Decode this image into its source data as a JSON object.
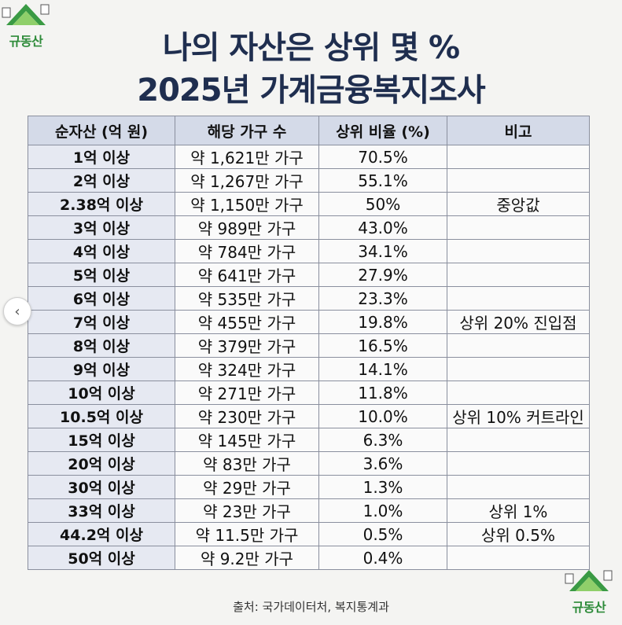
{
  "brand": {
    "logo_text": "규동산"
  },
  "title": {
    "line1": "나의 자산은 상위 몇 %",
    "line2": "2025년 가계금융복지조사"
  },
  "table": {
    "headers": [
      "순자산 (억 원)",
      "해당 가구 수",
      "상위 비율 (%)",
      "비고"
    ],
    "rows": [
      [
        "1억 이상",
        "약 1,621만 가구",
        "70.5%",
        ""
      ],
      [
        "2억 이상",
        "약 1,267만 가구",
        "55.1%",
        ""
      ],
      [
        "2.38억 이상",
        "약 1,150만 가구",
        "50%",
        "중앙값"
      ],
      [
        "3억 이상",
        "약 989만 가구",
        "43.0%",
        ""
      ],
      [
        "4억 이상",
        "약 784만 가구",
        "34.1%",
        ""
      ],
      [
        "5억 이상",
        "약 641만 가구",
        "27.9%",
        ""
      ],
      [
        "6억 이상",
        "약 535만 가구",
        "23.3%",
        ""
      ],
      [
        "7억 이상",
        "약 455만 가구",
        "19.8%",
        "상위 20% 진입점"
      ],
      [
        "8억 이상",
        "약 379만 가구",
        "16.5%",
        ""
      ],
      [
        "9억 이상",
        "약 324만 가구",
        "14.1%",
        ""
      ],
      [
        "10억 이상",
        "약 271만 가구",
        "11.8%",
        ""
      ],
      [
        "10.5억 이상",
        "약 230만 가구",
        "10.0%",
        "상위 10% 커트라인"
      ],
      [
        "15억 이상",
        "약 145만 가구",
        "6.3%",
        ""
      ],
      [
        "20억 이상",
        "약 83만 가구",
        "3.6%",
        ""
      ],
      [
        "30억 이상",
        "약 29만 가구",
        "1.3%",
        ""
      ],
      [
        "33억 이상",
        "약 23만 가구",
        "1.0%",
        "상위 1%"
      ],
      [
        "44.2억 이상",
        "약 11.5만 가구",
        "0.5%",
        "상위 0.5%"
      ],
      [
        "50억 이상",
        "약 9.2만 가구",
        "0.4%",
        ""
      ]
    ]
  },
  "source": "출처: 국가데이터처, 복지통계과",
  "nav": {
    "prev_icon": "‹"
  },
  "colors": {
    "title": "#1f2e4f",
    "header_bg": "#d4dae8",
    "first_col_bg": "#e6e9f2",
    "logo_green": "#2e8b3a"
  }
}
